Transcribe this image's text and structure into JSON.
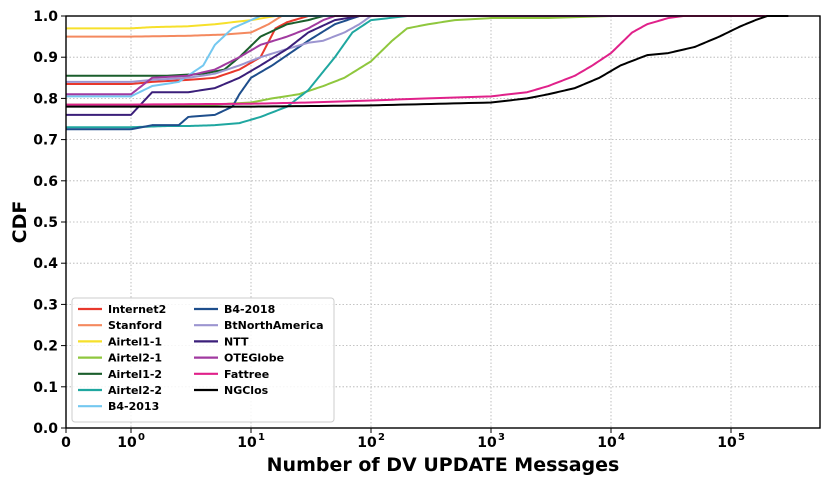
{
  "chart_data": {
    "type": "line",
    "xlabel": "Number of DV UPDATE Messages",
    "ylabel": "CDF",
    "xscale": "symlog",
    "xlim": [
      0,
      300000
    ],
    "ylim": [
      0,
      1
    ],
    "grid": true,
    "legend_position": "lower-left",
    "legend_columns": 2,
    "x_ticks": [
      {
        "value": 0,
        "label": "0"
      },
      {
        "value": 1,
        "label": "10",
        "exp": "0"
      },
      {
        "value": 10,
        "label": "10",
        "exp": "1"
      },
      {
        "value": 100,
        "label": "10",
        "exp": "2"
      },
      {
        "value": 1000,
        "label": "10",
        "exp": "3"
      },
      {
        "value": 10000,
        "label": "10",
        "exp": "4"
      },
      {
        "value": 100000,
        "label": "10",
        "exp": "5"
      }
    ],
    "y_ticks": [
      {
        "value": 0.0,
        "label": "0.0"
      },
      {
        "value": 0.1,
        "label": "0.1"
      },
      {
        "value": 0.2,
        "label": "0.2"
      },
      {
        "value": 0.3,
        "label": "0.3"
      },
      {
        "value": 0.4,
        "label": "0.4"
      },
      {
        "value": 0.5,
        "label": "0.5"
      },
      {
        "value": 0.6,
        "label": "0.6"
      },
      {
        "value": 0.7,
        "label": "0.7"
      },
      {
        "value": 0.8,
        "label": "0.8"
      },
      {
        "value": 0.9,
        "label": "0.9"
      },
      {
        "value": 1.0,
        "label": "1.0"
      }
    ],
    "series": [
      {
        "name": "Internet2",
        "color": "#e8382c",
        "points": [
          [
            0,
            0.835
          ],
          [
            1,
            0.835
          ],
          [
            1.5,
            0.84
          ],
          [
            3,
            0.845
          ],
          [
            5,
            0.85
          ],
          [
            8,
            0.87
          ],
          [
            12,
            0.9
          ],
          [
            16,
            0.97
          ],
          [
            20,
            0.985
          ],
          [
            30,
            1
          ],
          [
            300000,
            1
          ]
        ]
      },
      {
        "name": "Stanford",
        "color": "#f4895f",
        "points": [
          [
            0,
            0.95
          ],
          [
            1,
            0.95
          ],
          [
            3,
            0.952
          ],
          [
            6,
            0.955
          ],
          [
            10,
            0.96
          ],
          [
            14,
            0.98
          ],
          [
            18,
            1
          ],
          [
            300000,
            1
          ]
        ]
      },
      {
        "name": "Airtel1-1",
        "color": "#f6e02b",
        "points": [
          [
            0,
            0.97
          ],
          [
            1,
            0.97
          ],
          [
            1.5,
            0.973
          ],
          [
            3,
            0.975
          ],
          [
            5,
            0.98
          ],
          [
            10,
            0.99
          ],
          [
            16,
            1
          ],
          [
            300000,
            1
          ]
        ]
      },
      {
        "name": "Airtel2-1",
        "color": "#8fc73e",
        "points": [
          [
            0,
            0.785
          ],
          [
            1,
            0.785
          ],
          [
            5,
            0.785
          ],
          [
            10,
            0.79
          ],
          [
            15,
            0.8
          ],
          [
            25,
            0.81
          ],
          [
            40,
            0.83
          ],
          [
            60,
            0.85
          ],
          [
            100,
            0.89
          ],
          [
            150,
            0.94
          ],
          [
            200,
            0.97
          ],
          [
            300,
            0.98
          ],
          [
            500,
            0.99
          ],
          [
            1000,
            0.995
          ],
          [
            3000,
            0.995
          ],
          [
            10000,
            1
          ],
          [
            300000,
            1
          ]
        ]
      },
      {
        "name": "Airtel1-2",
        "color": "#1a5e2c",
        "points": [
          [
            0,
            0.855
          ],
          [
            1,
            0.855
          ],
          [
            2,
            0.855
          ],
          [
            4,
            0.86
          ],
          [
            6,
            0.87
          ],
          [
            8,
            0.9
          ],
          [
            12,
            0.95
          ],
          [
            20,
            0.98
          ],
          [
            30,
            0.99
          ],
          [
            40,
            1
          ],
          [
            300000,
            1
          ]
        ]
      },
      {
        "name": "Airtel2-2",
        "color": "#1fa7a0",
        "points": [
          [
            0,
            0.73
          ],
          [
            1,
            0.73
          ],
          [
            2,
            0.733
          ],
          [
            3,
            0.733
          ],
          [
            5,
            0.735
          ],
          [
            8,
            0.74
          ],
          [
            12,
            0.755
          ],
          [
            20,
            0.78
          ],
          [
            30,
            0.82
          ],
          [
            50,
            0.9
          ],
          [
            70,
            0.96
          ],
          [
            100,
            0.99
          ],
          [
            200,
            1
          ],
          [
            300000,
            1
          ]
        ]
      },
      {
        "name": "B4-2013",
        "color": "#74c8f0",
        "points": [
          [
            0,
            0.805
          ],
          [
            1,
            0.805
          ],
          [
            1.5,
            0.83
          ],
          [
            2.5,
            0.84
          ],
          [
            4,
            0.88
          ],
          [
            5,
            0.93
          ],
          [
            7,
            0.97
          ],
          [
            10,
            0.99
          ],
          [
            12,
            1
          ],
          [
            300000,
            1
          ]
        ]
      },
      {
        "name": "B4-2018",
        "color": "#1e4e8c",
        "points": [
          [
            0,
            0.725
          ],
          [
            1,
            0.725
          ],
          [
            1.5,
            0.735
          ],
          [
            2.5,
            0.735
          ],
          [
            3,
            0.755
          ],
          [
            5,
            0.76
          ],
          [
            7,
            0.78
          ],
          [
            8,
            0.81
          ],
          [
            10,
            0.85
          ],
          [
            15,
            0.88
          ],
          [
            30,
            0.94
          ],
          [
            50,
            0.98
          ],
          [
            80,
            1
          ],
          [
            300000,
            1
          ]
        ]
      },
      {
        "name": "BtNorthAmerica",
        "color": "#9c95d0",
        "points": [
          [
            0,
            0.84
          ],
          [
            1,
            0.84
          ],
          [
            1.5,
            0.845
          ],
          [
            3,
            0.85
          ],
          [
            5,
            0.86
          ],
          [
            8,
            0.88
          ],
          [
            12,
            0.9
          ],
          [
            20,
            0.92
          ],
          [
            30,
            0.935
          ],
          [
            40,
            0.94
          ],
          [
            60,
            0.96
          ],
          [
            80,
            0.98
          ],
          [
            100,
            1
          ],
          [
            300000,
            1
          ]
        ]
      },
      {
        "name": "NTT",
        "color": "#3b1f7a",
        "points": [
          [
            0,
            0.76
          ],
          [
            1,
            0.76
          ],
          [
            1.5,
            0.815
          ],
          [
            3,
            0.815
          ],
          [
            5,
            0.825
          ],
          [
            8,
            0.85
          ],
          [
            12,
            0.88
          ],
          [
            20,
            0.92
          ],
          [
            30,
            0.96
          ],
          [
            50,
            0.99
          ],
          [
            80,
            1
          ],
          [
            300000,
            1
          ]
        ]
      },
      {
        "name": "OTEGlobe",
        "color": "#a13aa0",
        "points": [
          [
            0,
            0.81
          ],
          [
            1,
            0.81
          ],
          [
            1.5,
            0.85
          ],
          [
            3,
            0.855
          ],
          [
            5,
            0.87
          ],
          [
            8,
            0.9
          ],
          [
            12,
            0.93
          ],
          [
            20,
            0.95
          ],
          [
            30,
            0.97
          ],
          [
            40,
            0.99
          ],
          [
            50,
            1
          ],
          [
            300000,
            1
          ]
        ]
      },
      {
        "name": "Fattree",
        "color": "#e0218a",
        "points": [
          [
            0,
            0.785
          ],
          [
            1,
            0.785
          ],
          [
            10,
            0.787
          ],
          [
            30,
            0.79
          ],
          [
            100,
            0.795
          ],
          [
            300,
            0.8
          ],
          [
            1000,
            0.805
          ],
          [
            2000,
            0.815
          ],
          [
            3000,
            0.83
          ],
          [
            5000,
            0.855
          ],
          [
            7000,
            0.88
          ],
          [
            10000,
            0.91
          ],
          [
            15000,
            0.96
          ],
          [
            20000,
            0.98
          ],
          [
            30000,
            0.995
          ],
          [
            40000,
            1
          ],
          [
            300000,
            1
          ]
        ]
      },
      {
        "name": "NGClos",
        "color": "#000000",
        "points": [
          [
            0,
            0.78
          ],
          [
            1,
            0.78
          ],
          [
            10,
            0.78
          ],
          [
            100,
            0.783
          ],
          [
            1000,
            0.79
          ],
          [
            2000,
            0.8
          ],
          [
            3000,
            0.81
          ],
          [
            5000,
            0.825
          ],
          [
            8000,
            0.85
          ],
          [
            12000,
            0.88
          ],
          [
            20000,
            0.905
          ],
          [
            30000,
            0.91
          ],
          [
            50000,
            0.925
          ],
          [
            80000,
            0.95
          ],
          [
            120000,
            0.975
          ],
          [
            160000,
            0.99
          ],
          [
            200000,
            1
          ],
          [
            300000,
            1
          ]
        ]
      }
    ]
  }
}
